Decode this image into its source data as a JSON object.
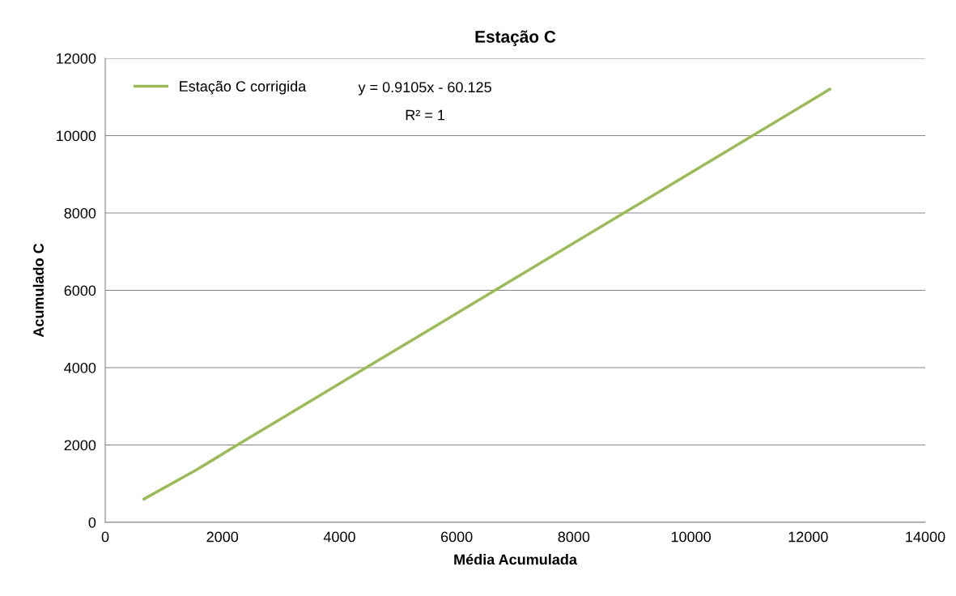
{
  "chart_data": {
    "type": "line",
    "title": "Estação C",
    "xlabel": "Média Acumulada",
    "ylabel": "Acumulado C",
    "x": [
      660,
      1550,
      2300,
      4500,
      6700,
      8900,
      9700,
      12370
    ],
    "series": [
      {
        "name": "Estação C corrigida",
        "color": "#9bbb59",
        "values": [
          600,
          1350,
          2040,
          4040,
          6040,
          8040,
          8770,
          11200
        ]
      }
    ],
    "xlim": [
      0,
      14000
    ],
    "xticks": [
      0,
      2000,
      4000,
      6000,
      8000,
      10000,
      12000,
      14000
    ],
    "ylim": [
      0,
      12000
    ],
    "yticks": [
      0,
      2000,
      4000,
      6000,
      8000,
      10000,
      12000
    ],
    "grid": "y",
    "legend": "top left",
    "marker": "none",
    "line_style": "solid",
    "annotations": [
      "y = 0.9105x - 60.125",
      "R² = 1"
    ]
  }
}
